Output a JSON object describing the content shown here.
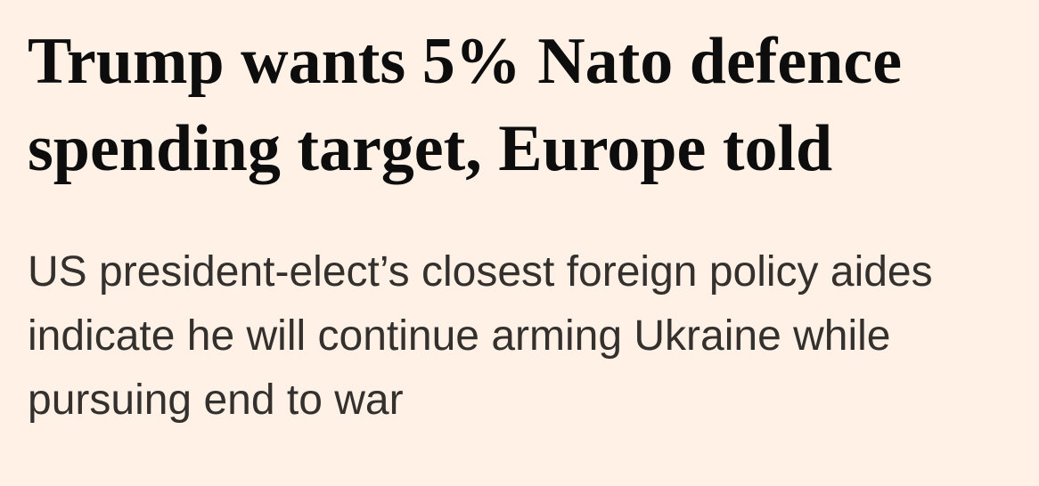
{
  "colors": {
    "background": "#FFF1E5",
    "headline-text": "#0D0D0D",
    "standfirst-text": "#33302E"
  },
  "article": {
    "headline": "Trump wants 5% Nato defence spending target, Europe told",
    "standfirst": "US president-elect’s closest foreign policy aides indicate he will continue arming Ukraine while pursuing end to war"
  }
}
